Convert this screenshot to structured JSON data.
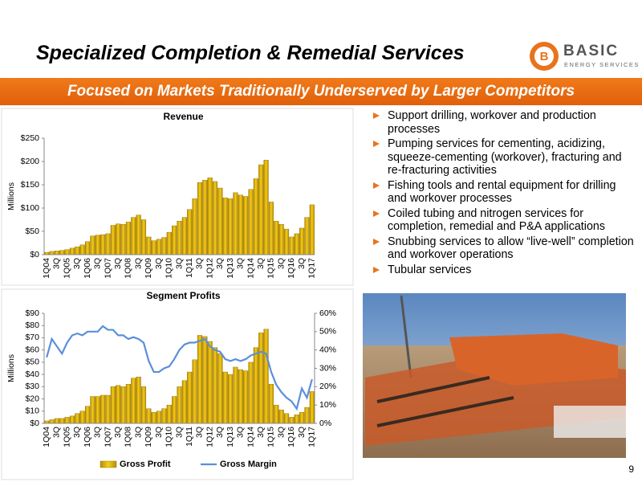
{
  "title": "Specialized Completion & Remedial Services",
  "subtitle": "Focused on Markets Traditionally Underserved by Larger Competitors",
  "logo": {
    "mark": "B",
    "name": "BASIC",
    "tagline": "ENERGY SERVICES"
  },
  "bullets": [
    "Support drilling, workover and production processes",
    "Pumping services for cementing, acidizing, squeeze-cementing (workover), fracturing and re-fracturing activities",
    "Fishing tools and rental equipment for drilling and workover processes",
    "Coiled tubing and nitrogen services for completion, remedial and P&A applications",
    "Snubbing services to allow “live-well” completion and workover operations",
    "Tubular services"
  ],
  "page_number": "9",
  "chart_data": [
    {
      "type": "bar",
      "title": "Revenue",
      "y_label": "Millions",
      "color": "#e6b800",
      "categories": [
        "1Q04",
        null,
        "3Q",
        null,
        "1Q05",
        null,
        "3Q",
        null,
        "1Q06",
        null,
        "3Q",
        null,
        "1Q07",
        null,
        "3Q",
        null,
        "1Q08",
        null,
        "3Q",
        null,
        "1Q09",
        null,
        "3Q",
        null,
        "1Q10",
        null,
        "3Q",
        null,
        "1Q11",
        null,
        "3Q",
        null,
        "1Q12",
        null,
        "3Q",
        null,
        "1Q13",
        null,
        "3Q",
        null,
        "1Q14",
        null,
        "3Q",
        null,
        "1Q15",
        null,
        "3Q",
        null,
        "1Q16",
        null,
        "3Q",
        null,
        "1Q17"
      ],
      "values": [
        5,
        7,
        8,
        9,
        11,
        14,
        17,
        21,
        28,
        40,
        42,
        43,
        45,
        63,
        66,
        65,
        70,
        80,
        85,
        75,
        38,
        30,
        33,
        37,
        48,
        62,
        72,
        80,
        97,
        120,
        155,
        160,
        165,
        157,
        143,
        122,
        120,
        133,
        128,
        125,
        140,
        163,
        193,
        203,
        113,
        72,
        65,
        55,
        38,
        45,
        57,
        80,
        107
      ],
      "ylim": [
        0,
        250
      ],
      "yticks": [
        {
          "value": 0,
          "label": "$0"
        },
        {
          "value": 50,
          "label": "$50"
        },
        {
          "value": 100,
          "label": "$100"
        },
        {
          "value": 150,
          "label": "$150"
        },
        {
          "value": 200,
          "label": "$200"
        },
        {
          "value": 250,
          "label": "$250"
        }
      ],
      "grid": false
    },
    {
      "type": "combo",
      "title": "Segment Profits",
      "y_label": "Millions",
      "categories": [
        "1Q04",
        null,
        "3Q",
        null,
        "1Q05",
        null,
        "3Q",
        null,
        "1Q06",
        null,
        "3Q",
        null,
        "1Q07",
        null,
        "3Q",
        null,
        "1Q08",
        null,
        "3Q",
        null,
        "1Q09",
        null,
        "3Q",
        null,
        "1Q10",
        null,
        "3Q",
        null,
        "1Q11",
        null,
        "3Q",
        null,
        "1Q12",
        null,
        "3Q",
        null,
        "1Q13",
        null,
        "3Q",
        null,
        "1Q14",
        null,
        "3Q",
        null,
        "1Q15",
        null,
        "3Q",
        null,
        "1Q16",
        null,
        "3Q",
        null,
        "1Q17"
      ],
      "series": [
        {
          "name": "Gross Profit",
          "type": "bar",
          "color": "#e6b800",
          "values": [
            2,
            3,
            4,
            4,
            5,
            6,
            8,
            10,
            14,
            22,
            22,
            23,
            23,
            30,
            31,
            30,
            32,
            37,
            38,
            30,
            12,
            9,
            10,
            12,
            15,
            22,
            30,
            35,
            42,
            52,
            72,
            71,
            67,
            62,
            57,
            42,
            40,
            46,
            44,
            43,
            50,
            62,
            74,
            77,
            32,
            15,
            11,
            8,
            5,
            7,
            9,
            13,
            26
          ]
        },
        {
          "name": "Gross Margin",
          "type": "line",
          "axis": "y2",
          "color": "#5b8fd9",
          "values": [
            36,
            46,
            42,
            38,
            44,
            48,
            49,
            48,
            50,
            50,
            50,
            53,
            51,
            51,
            48,
            48,
            46,
            47,
            46,
            44,
            34,
            28,
            28,
            30,
            31,
            35,
            40,
            43,
            44,
            44,
            45,
            46,
            42,
            40,
            39,
            35,
            34,
            35,
            34,
            35,
            37,
            38,
            39,
            38,
            28,
            21,
            17,
            14,
            12,
            8,
            19,
            14,
            24
          ]
        }
      ],
      "ylim": [
        0,
        90
      ],
      "yticks": [
        {
          "value": 0,
          "label": "$0"
        },
        {
          "value": 10,
          "label": "$10"
        },
        {
          "value": 20,
          "label": "$20"
        },
        {
          "value": 30,
          "label": "$30"
        },
        {
          "value": 40,
          "label": "$40"
        },
        {
          "value": 50,
          "label": "$50"
        },
        {
          "value": 60,
          "label": "$60"
        },
        {
          "value": 70,
          "label": "$70"
        },
        {
          "value": 80,
          "label": "$80"
        },
        {
          "value": 90,
          "label": "$90"
        }
      ],
      "y2lim": [
        0,
        60
      ],
      "y2ticks": [
        {
          "value": 0,
          "label": "0%"
        },
        {
          "value": 10,
          "label": "10%"
        },
        {
          "value": 20,
          "label": "20%"
        },
        {
          "value": 30,
          "label": "30%"
        },
        {
          "value": 40,
          "label": "40%"
        },
        {
          "value": 50,
          "label": "50%"
        },
        {
          "value": 60,
          "label": "60%"
        }
      ],
      "grid": false,
      "legend": "bottom"
    }
  ]
}
